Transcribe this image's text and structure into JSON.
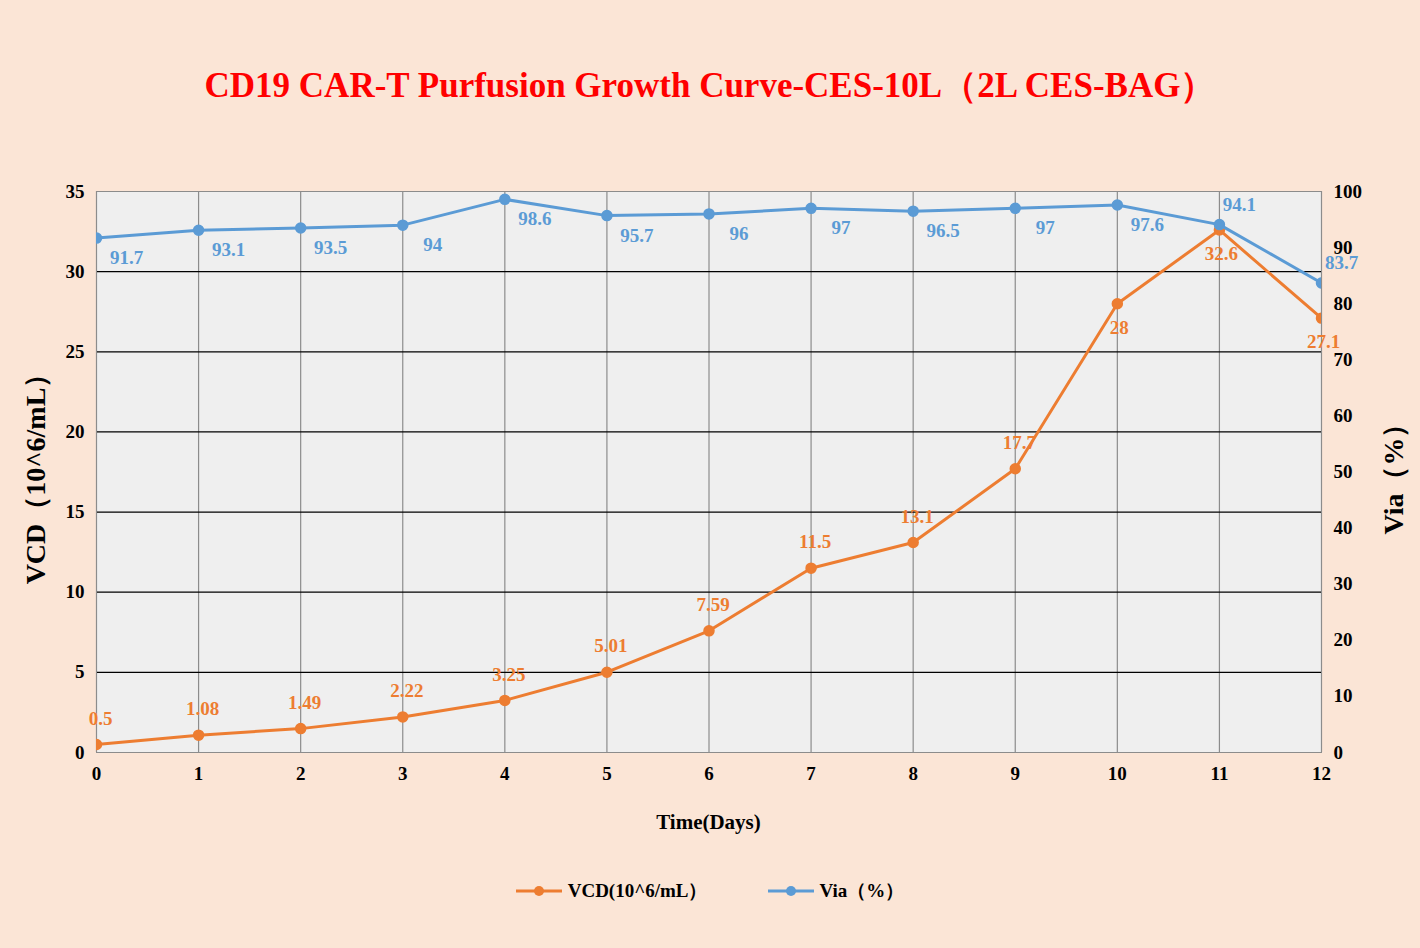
{
  "chart_data": {
    "type": "line",
    "title": "CD19 CAR-T Purfusion Growth Curve-CES-10L（2L CES-BAG）",
    "x_label": "Time(Days)",
    "y_label": "VCD（10^6/mL）",
    "y2_label": "Via（%）",
    "x": [
      0,
      1,
      2,
      3,
      4,
      5,
      6,
      7,
      8,
      9,
      10,
      11,
      12
    ],
    "xlim": [
      0,
      12
    ],
    "xticks": [
      0,
      1,
      2,
      3,
      4,
      5,
      6,
      7,
      8,
      9,
      10,
      11,
      12
    ],
    "ylim": [
      0,
      35
    ],
    "yticks": [
      0,
      5,
      10,
      15,
      20,
      25,
      30,
      35
    ],
    "y2lim": [
      0,
      100
    ],
    "y2ticks": [
      0,
      10,
      20,
      30,
      40,
      50,
      60,
      70,
      80,
      90,
      100
    ],
    "grid": true,
    "data_labels": true,
    "legend": "bottom",
    "series": [
      {
        "name": "VCD(10^6/mL）",
        "color": "#ED7D31",
        "marker": "circle",
        "values": [
          0.5,
          1.08,
          1.49,
          2.22,
          3.25,
          5.01,
          7.59,
          11.5,
          13.1,
          17.7,
          28,
          32.6,
          27.1
        ]
      },
      {
        "name": "Via（%）",
        "color": "#5B9BD5",
        "marker": "circle",
        "axis": "y2",
        "values": [
          91.7,
          93.1,
          93.5,
          94,
          98.6,
          95.7,
          96,
          97,
          96.5,
          97,
          97.6,
          94.1,
          83.7
        ]
      }
    ]
  }
}
